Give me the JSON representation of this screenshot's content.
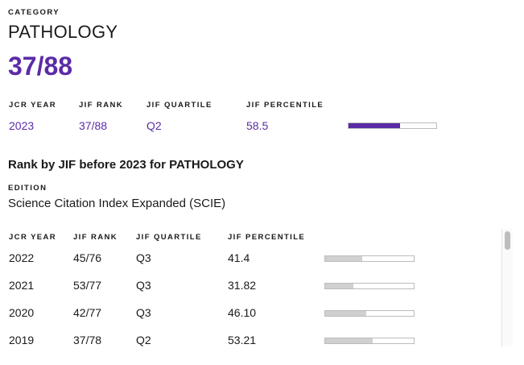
{
  "category": {
    "label": "CATEGORY",
    "name": "PATHOLOGY",
    "rank": "37/88"
  },
  "current": {
    "headers": {
      "jcr_year": "JCR YEAR",
      "jif_rank": "JIF RANK",
      "jif_quartile": "JIF QUARTILE",
      "jif_percentile": "JIF PERCENTILE"
    },
    "row": {
      "year": "2023",
      "rank": "37/88",
      "quartile": "Q2",
      "percentile": "58.5",
      "percentile_fraction": 0.585
    }
  },
  "history": {
    "title": "Rank by JIF before 2023 for PATHOLOGY",
    "edition_label": "EDITION",
    "edition_value": "Science Citation Index Expanded (SCIE)",
    "headers": {
      "jcr_year": "JCR YEAR",
      "jif_rank": "JIF RANK",
      "jif_quartile": "JIF QUARTILE",
      "jif_percentile": "JIF PERCENTILE"
    },
    "rows": [
      {
        "year": "2022",
        "rank": "45/76",
        "quartile": "Q3",
        "percentile": "41.4",
        "percentile_fraction": 0.414
      },
      {
        "year": "2021",
        "rank": "53/77",
        "quartile": "Q3",
        "percentile": "31.82",
        "percentile_fraction": 0.3182
      },
      {
        "year": "2020",
        "rank": "42/77",
        "quartile": "Q3",
        "percentile": "46.10",
        "percentile_fraction": 0.461
      },
      {
        "year": "2019",
        "rank": "37/78",
        "quartile": "Q2",
        "percentile": "53.21",
        "percentile_fraction": 0.5321
      }
    ]
  },
  "colors": {
    "accent": "#5b2ba7",
    "bar_history": "#d0d0d0"
  }
}
